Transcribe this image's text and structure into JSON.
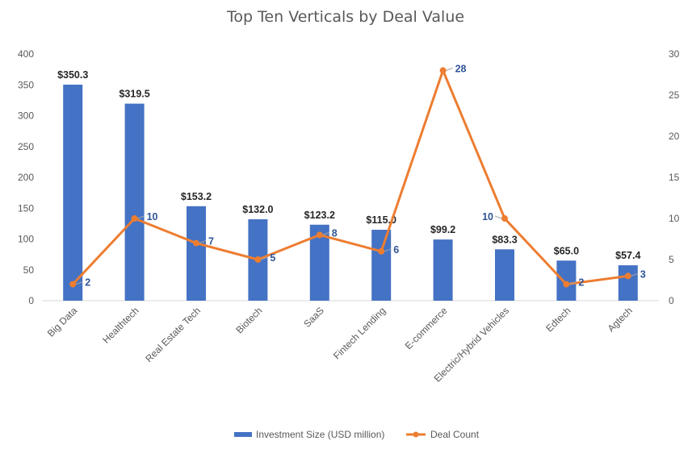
{
  "chart_data": {
    "type": "bar",
    "title": "Top Ten Verticals by Deal Value",
    "categories": [
      "Big Data",
      "Healthtech",
      "Real Estate Tech",
      "Biotech",
      "SaaS",
      "Fintech Lending",
      "E-commerce",
      "Electric/Hybrid Vehicles",
      "Edtech",
      "Agtech"
    ],
    "series": [
      {
        "name": "Investment Size (USD million)",
        "type": "bar",
        "axis": "left",
        "color": "#4472C4",
        "values": [
          350.3,
          319.5,
          153.2,
          132.0,
          123.2,
          115.0,
          99.2,
          83.3,
          65.0,
          57.4
        ],
        "labels": [
          "$350.3",
          "$319.5",
          "$153.2",
          "$132.0",
          "$123.2",
          "$115.0",
          "$99.2",
          "$83.3",
          "$65.0",
          "$57.4"
        ]
      },
      {
        "name": "Deal Count",
        "type": "line",
        "axis": "right",
        "color": "#ED7D31",
        "values": [
          2,
          10,
          7,
          5,
          8,
          6,
          28,
          10,
          2,
          3
        ],
        "labels": [
          "2",
          "10",
          "7",
          "5",
          "8",
          "6",
          "28",
          "10",
          "2",
          "3"
        ]
      }
    ],
    "y_left": {
      "min": 0,
      "max": 400,
      "ticks": [
        "0",
        "50",
        "100",
        "150",
        "200",
        "250",
        "300",
        "350",
        "400"
      ]
    },
    "y_right": {
      "min": 0,
      "max": 30,
      "ticks": [
        "0",
        "5",
        "10",
        "15",
        "20",
        "25",
        "30"
      ]
    },
    "grid": false,
    "legend": "bottom"
  }
}
